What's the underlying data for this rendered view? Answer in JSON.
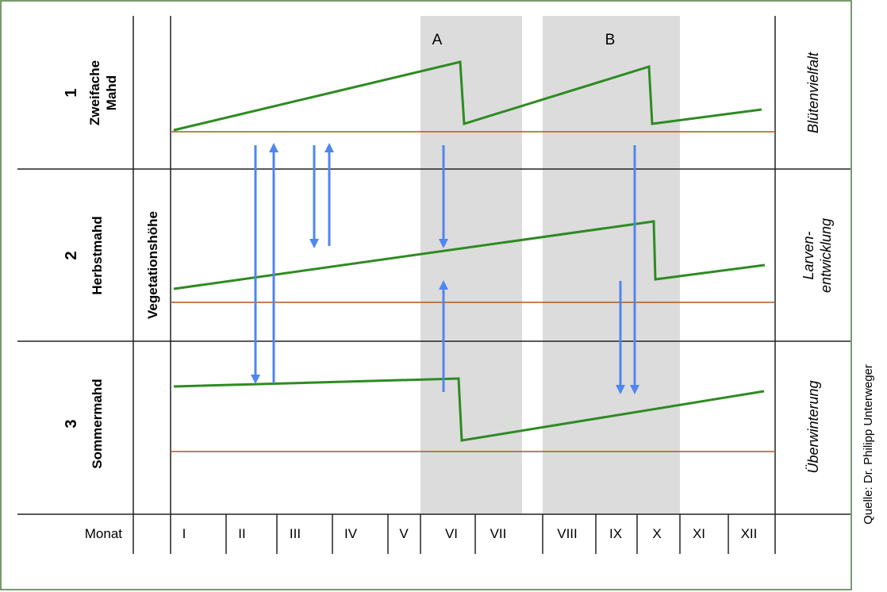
{
  "diagram": {
    "colors": {
      "frame": "#4a7a3a",
      "grid": "#222222",
      "shade": "#dcdcdc",
      "vegetation_line": "#2e8b22",
      "threshold_line": "#b0561a",
      "arrow": "#4f86f0"
    },
    "row_labels": [
      {
        "number": "1",
        "name_lines": [
          "Zweifache",
          "Mahd"
        ]
      },
      {
        "number": "2",
        "name_lines": [
          "Herbstmahd"
        ]
      },
      {
        "number": "3",
        "name_lines": [
          "Sommermahd"
        ]
      }
    ],
    "axis_label": "Vegetationshöhe",
    "side_labels": [
      {
        "lines": [
          "Blütenvielfalt"
        ]
      },
      {
        "lines": [
          "Larven-",
          "entwicklung"
        ]
      },
      {
        "lines": [
          "Überwinterung"
        ]
      }
    ],
    "month_header": "Monat",
    "months": [
      "I",
      "II",
      "III",
      "IV",
      "V",
      "VI",
      "VII",
      "VIII",
      "IX",
      "X",
      "XI",
      "XII"
    ],
    "mowing_windows": [
      {
        "label": "A"
      },
      {
        "label": "B"
      }
    ],
    "source": "Quelle: Dr. Philipp Unterweger"
  }
}
